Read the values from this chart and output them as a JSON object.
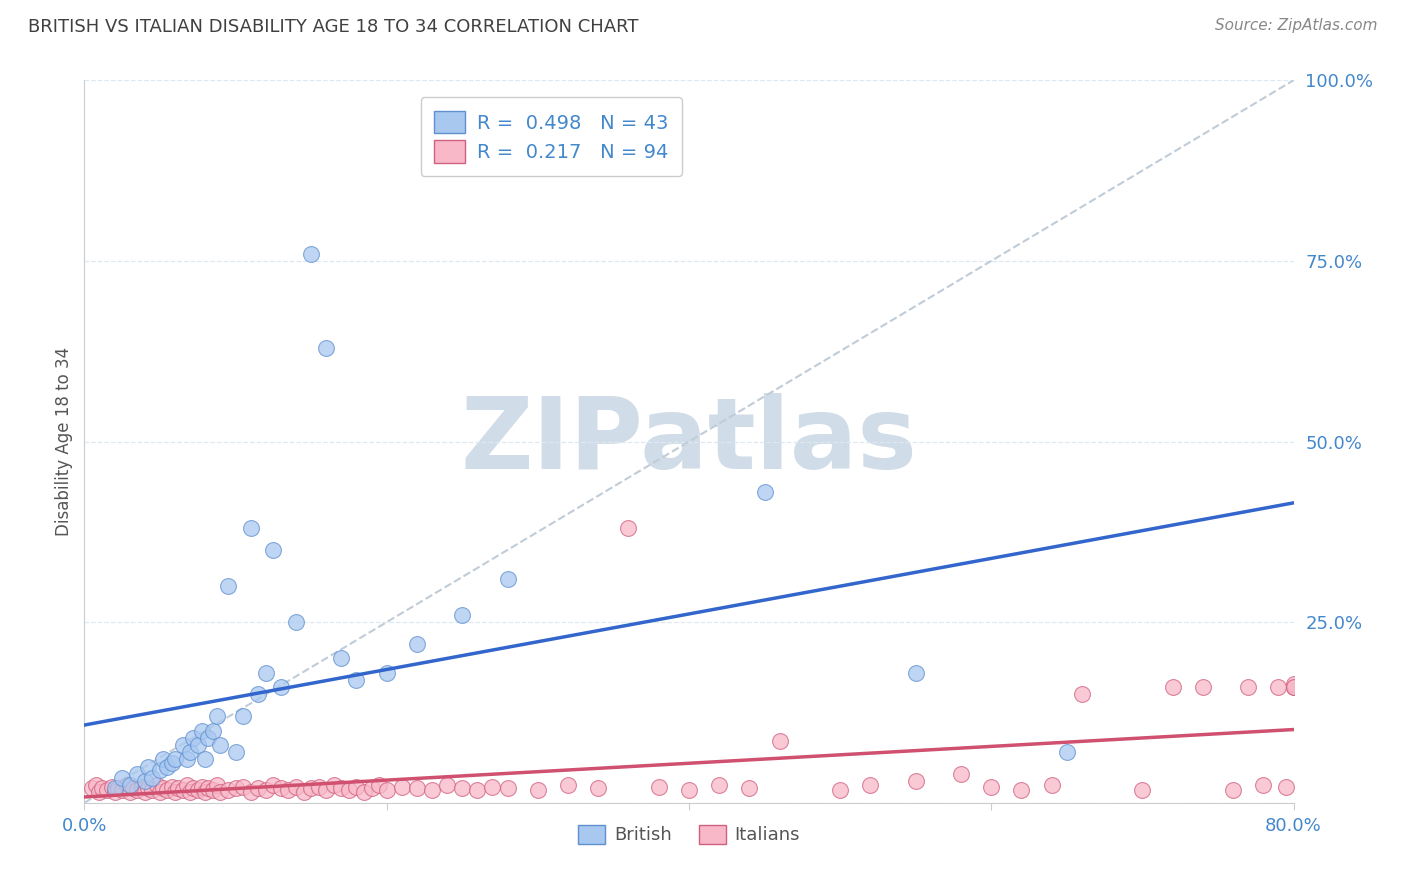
{
  "title": "BRITISH VS ITALIAN DISABILITY AGE 18 TO 34 CORRELATION CHART",
  "source": "Source: ZipAtlas.com",
  "ylabel": "Disability Age 18 to 34",
  "xlim": [
    0.0,
    0.8
  ],
  "ylim": [
    0.0,
    1.0
  ],
  "xticks": [
    0.0,
    0.2,
    0.4,
    0.6,
    0.8
  ],
  "yticks": [
    0.0,
    0.25,
    0.5,
    0.75,
    1.0
  ],
  "xtick_labels": [
    "0.0%",
    "",
    "",
    "",
    "80.0%"
  ],
  "ytick_labels": [
    "",
    "25.0%",
    "50.0%",
    "75.0%",
    "100.0%"
  ],
  "british_R": 0.498,
  "british_N": 43,
  "italian_R": 0.217,
  "italian_N": 94,
  "british_color": "#a8c8f0",
  "british_edge_color": "#6090d0",
  "british_line_color": "#3366cc",
  "italian_color": "#f8b8c8",
  "italian_edge_color": "#d06080",
  "italian_line_color": "#d05070",
  "ref_line_color": "#c0ccd8",
  "watermark": "ZIPatlas",
  "watermark_color": "#d0dce8",
  "title_color": "#404040",
  "source_color": "#888888",
  "tick_color": "#4488cc",
  "ylabel_color": "#555555",
  "grid_color": "#dde8f0",
  "british_x": [
    0.02,
    0.025,
    0.03,
    0.035,
    0.04,
    0.042,
    0.045,
    0.05,
    0.052,
    0.055,
    0.058,
    0.06,
    0.065,
    0.068,
    0.07,
    0.072,
    0.075,
    0.078,
    0.08,
    0.082,
    0.085,
    0.088,
    0.09,
    0.095,
    0.1,
    0.105,
    0.11,
    0.115,
    0.12,
    0.125,
    0.13,
    0.14,
    0.15,
    0.16,
    0.17,
    0.18,
    0.2,
    0.22,
    0.25,
    0.28,
    0.45,
    0.55,
    0.65
  ],
  "british_y": [
    0.02,
    0.035,
    0.025,
    0.04,
    0.03,
    0.05,
    0.035,
    0.045,
    0.06,
    0.05,
    0.055,
    0.06,
    0.08,
    0.06,
    0.07,
    0.09,
    0.08,
    0.1,
    0.06,
    0.09,
    0.1,
    0.12,
    0.08,
    0.3,
    0.07,
    0.12,
    0.38,
    0.15,
    0.18,
    0.35,
    0.16,
    0.25,
    0.76,
    0.63,
    0.2,
    0.17,
    0.18,
    0.22,
    0.26,
    0.31,
    0.43,
    0.18,
    0.07
  ],
  "italian_x": [
    0.005,
    0.008,
    0.01,
    0.012,
    0.015,
    0.018,
    0.02,
    0.022,
    0.025,
    0.028,
    0.03,
    0.032,
    0.035,
    0.038,
    0.04,
    0.042,
    0.045,
    0.048,
    0.05,
    0.052,
    0.055,
    0.058,
    0.06,
    0.062,
    0.065,
    0.068,
    0.07,
    0.072,
    0.075,
    0.078,
    0.08,
    0.082,
    0.085,
    0.088,
    0.09,
    0.095,
    0.1,
    0.105,
    0.11,
    0.115,
    0.12,
    0.125,
    0.13,
    0.135,
    0.14,
    0.145,
    0.15,
    0.155,
    0.16,
    0.165,
    0.17,
    0.175,
    0.18,
    0.185,
    0.19,
    0.195,
    0.2,
    0.21,
    0.22,
    0.23,
    0.24,
    0.25,
    0.26,
    0.27,
    0.28,
    0.3,
    0.32,
    0.34,
    0.36,
    0.38,
    0.4,
    0.42,
    0.44,
    0.46,
    0.5,
    0.52,
    0.55,
    0.58,
    0.6,
    0.62,
    0.64,
    0.66,
    0.7,
    0.72,
    0.74,
    0.76,
    0.77,
    0.78,
    0.79,
    0.795,
    0.8,
    0.8,
    0.8,
    0.8
  ],
  "italian_y": [
    0.02,
    0.025,
    0.015,
    0.02,
    0.018,
    0.022,
    0.015,
    0.02,
    0.018,
    0.025,
    0.015,
    0.02,
    0.018,
    0.022,
    0.015,
    0.02,
    0.018,
    0.025,
    0.015,
    0.02,
    0.018,
    0.022,
    0.015,
    0.02,
    0.018,
    0.025,
    0.015,
    0.02,
    0.018,
    0.022,
    0.015,
    0.02,
    0.018,
    0.025,
    0.015,
    0.018,
    0.02,
    0.022,
    0.015,
    0.02,
    0.018,
    0.025,
    0.02,
    0.018,
    0.022,
    0.015,
    0.02,
    0.022,
    0.018,
    0.025,
    0.02,
    0.018,
    0.022,
    0.015,
    0.02,
    0.025,
    0.018,
    0.022,
    0.02,
    0.018,
    0.025,
    0.02,
    0.018,
    0.022,
    0.02,
    0.018,
    0.025,
    0.02,
    0.38,
    0.022,
    0.018,
    0.025,
    0.02,
    0.085,
    0.018,
    0.025,
    0.03,
    0.04,
    0.022,
    0.018,
    0.025,
    0.15,
    0.018,
    0.16,
    0.16,
    0.018,
    0.16,
    0.025,
    0.16,
    0.022,
    0.16,
    0.16,
    0.165,
    0.16
  ]
}
